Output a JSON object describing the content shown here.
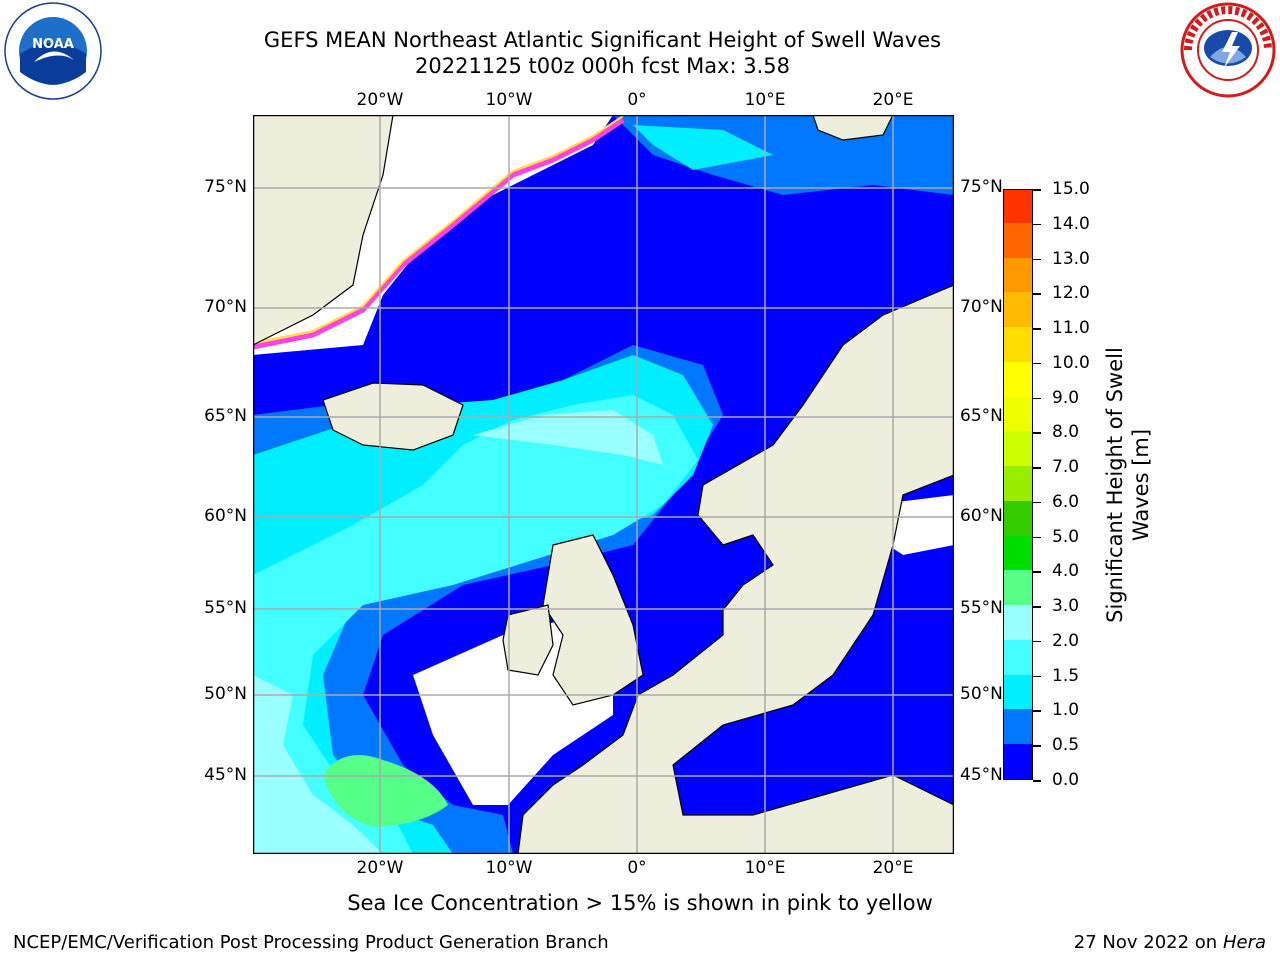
{
  "header": {
    "title_line1": "GEFS MEAN Northeast Atlantic Significant Height of Swell Waves",
    "title_line2": "20221125 t00z 000h fcst    Max: 3.58"
  },
  "logos": {
    "left": {
      "icon": "noaa-logo-icon",
      "text": "NOAA"
    },
    "right": {
      "icon": "national-weather-service-logo-icon",
      "text": "NATIONAL WEATHER SERVICE"
    }
  },
  "axes": {
    "lon_top": [
      "20°W",
      "10°W",
      "0°",
      "10°E",
      "20°E"
    ],
    "lon_bottom": [
      "20°W",
      "10°W",
      "0°",
      "10°E",
      "20°E"
    ],
    "lat_left": [
      "75°N",
      "70°N",
      "65°N",
      "60°N",
      "55°N",
      "50°N",
      "45°N"
    ],
    "lat_right": [
      "75°N",
      "70°N",
      "65°N",
      "60°N",
      "55°N",
      "50°N",
      "45°N"
    ]
  },
  "colorbar": {
    "label": "Significant Height of Swell Waves [m]",
    "ticks": [
      "15.0",
      "14.0",
      "13.0",
      "12.0",
      "11.0",
      "10.0",
      "9.0",
      "8.0",
      "7.0",
      "6.0",
      "5.0",
      "4.0",
      "3.0",
      "2.0",
      "1.5",
      "1.0",
      "0.5",
      "0.0"
    ],
    "colors": [
      "#0000ff",
      "#0077ff",
      "#00eeff",
      "#44ffff",
      "#99ffff",
      "#55ff88",
      "#00dd00",
      "#33cc00",
      "#99ee00",
      "#ccff00",
      "#eeff00",
      "#ffff00",
      "#ffdd00",
      "#ffbb00",
      "#ff9900",
      "#ff6600",
      "#ff3300",
      "#ff0000"
    ]
  },
  "map_colors": {
    "land": "#eeeedd",
    "missing": "#ffffff",
    "grid": "#aaaaaa",
    "ice_edge": [
      "#ff44dd",
      "#ffdd33"
    ]
  },
  "subtitle": "Sea Ice Concentration > 15% is shown in pink to yellow",
  "footer": {
    "left": "NCEP/EMC/Verification Post Processing Product Generation Branch",
    "right_date": "27 Nov 2022 on",
    "right_host": "Hera"
  }
}
